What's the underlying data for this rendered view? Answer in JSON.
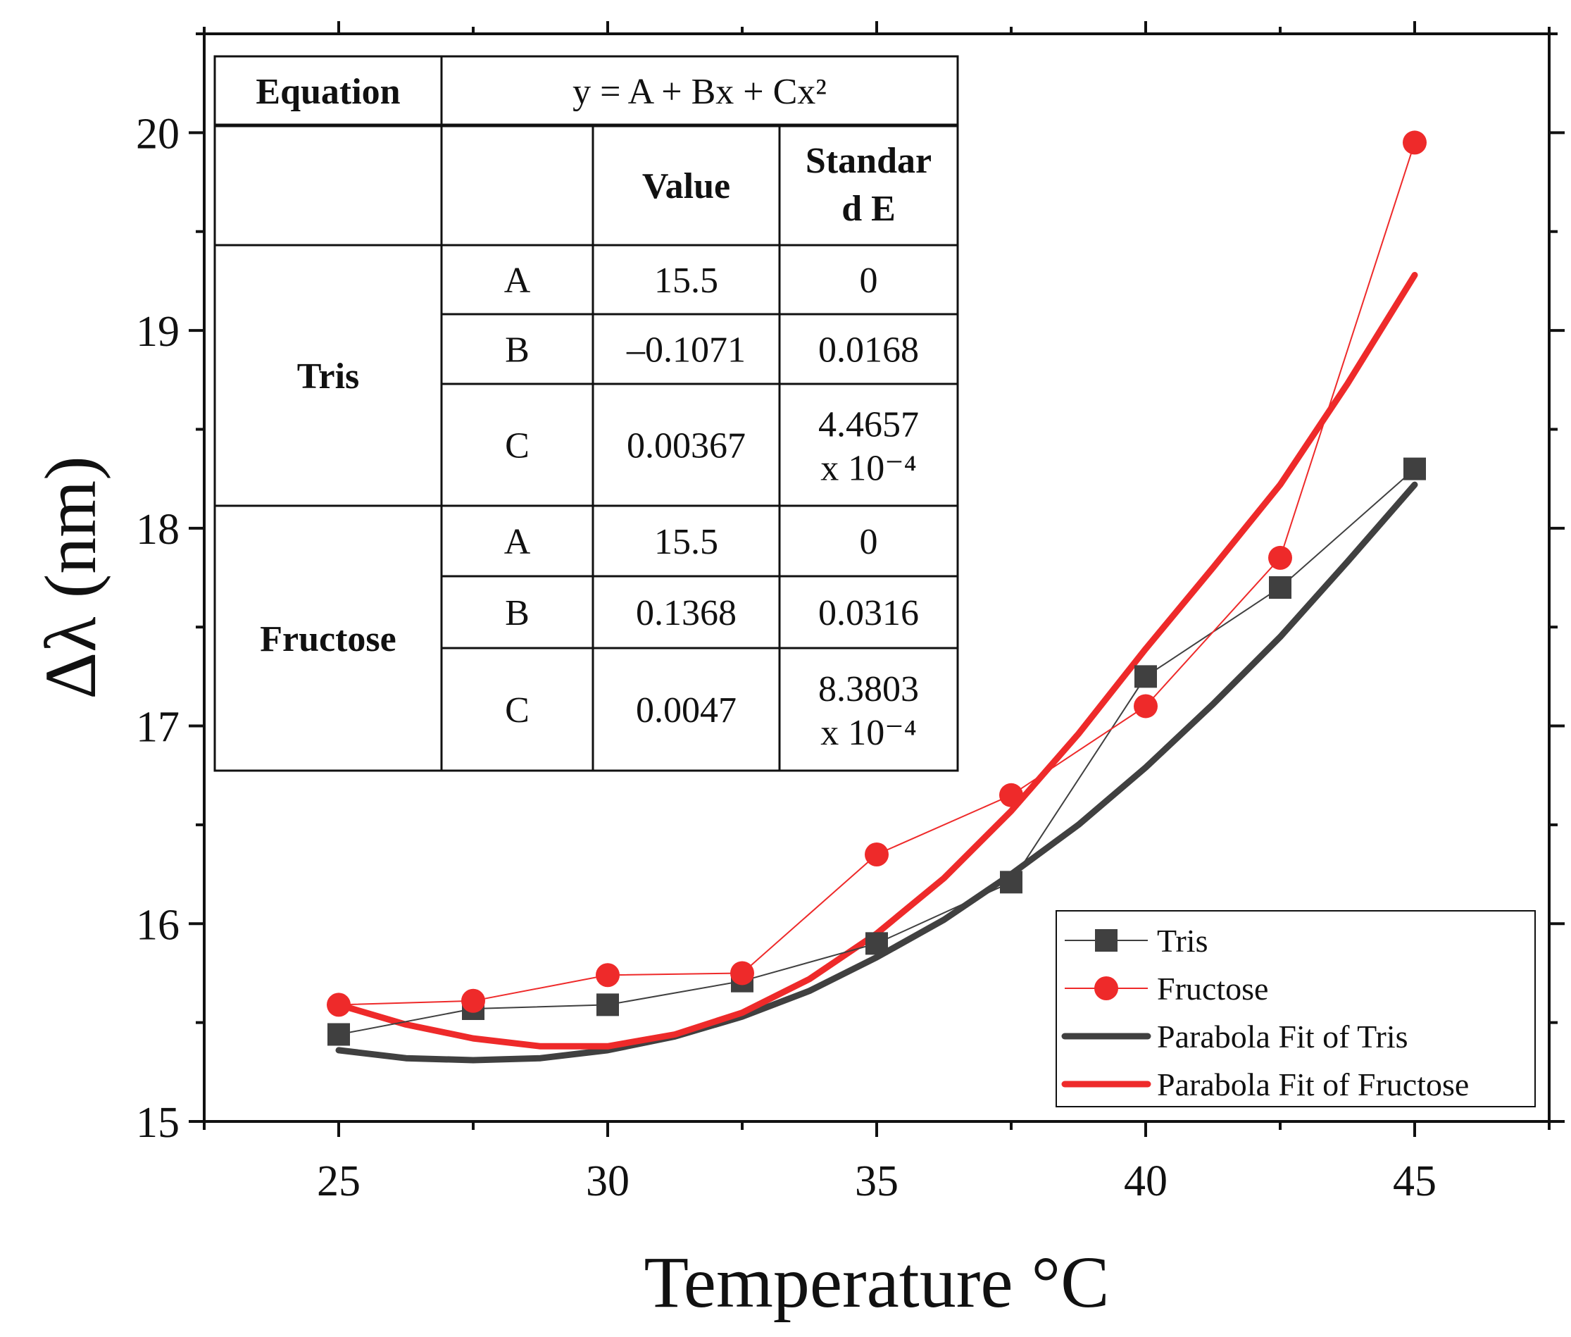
{
  "chart_data": {
    "type": "line",
    "title": "",
    "xlabel": "Temperature °C",
    "ylabel": "Δλ (nm)",
    "xlim": [
      22.5,
      47.5
    ],
    "ylim": [
      15,
      20.5
    ],
    "xticks": [
      25,
      30,
      35,
      40,
      45
    ],
    "xtick_labels": [
      "25",
      "30",
      "35",
      "40",
      "45"
    ],
    "yticks": [
      15,
      16,
      17,
      18,
      19,
      20
    ],
    "ytick_labels": [
      "15",
      "16",
      "17",
      "18",
      "19",
      "20"
    ],
    "x": [
      25,
      27.5,
      30,
      32.5,
      35,
      37.5,
      40,
      42.5,
      45
    ],
    "series": [
      {
        "name": "Tris",
        "color": "#404040",
        "marker": "square",
        "values": [
          15.44,
          15.57,
          15.59,
          15.71,
          15.9,
          16.21,
          17.25,
          17.7,
          18.3
        ]
      },
      {
        "name": "Fructose",
        "color": "#ee2a2a",
        "marker": "circle",
        "values": [
          15.59,
          15.61,
          15.74,
          15.75,
          16.35,
          16.65,
          17.1,
          17.85,
          19.95
        ]
      }
    ],
    "fits": [
      {
        "name": "Parabola Fit of Tris",
        "color": "#404040",
        "x": [
          25,
          26.25,
          27.5,
          28.75,
          30,
          31.25,
          32.5,
          33.75,
          35,
          36.25,
          37.5,
          38.75,
          40,
          41.25,
          42.5,
          43.75,
          45
        ],
        "values": [
          15.36,
          15.32,
          15.31,
          15.32,
          15.36,
          15.43,
          15.53,
          15.66,
          15.83,
          16.02,
          16.25,
          16.5,
          16.79,
          17.11,
          17.45,
          17.83,
          18.22
        ]
      },
      {
        "name": "Parabola Fit of Fructose",
        "color": "#ee2a2a",
        "x": [
          25,
          26.25,
          27.5,
          28.75,
          30,
          31.25,
          32.5,
          33.75,
          35,
          36.25,
          37.5,
          38.75,
          40,
          41.25,
          42.5,
          43.75,
          45
        ],
        "values": [
          15.59,
          15.49,
          15.42,
          15.38,
          15.38,
          15.44,
          15.55,
          15.72,
          15.95,
          16.23,
          16.57,
          16.96,
          17.39,
          17.8,
          18.22,
          18.73,
          19.28
        ]
      }
    ],
    "legend": {
      "position": "bottom-right",
      "entries": [
        "Tris",
        "Fructose",
        "Parabola Fit of Tris",
        "Parabola Fit of Fructose"
      ]
    },
    "inset_table": {
      "position": "top-left",
      "header_label": "Equation",
      "equation": "y = A + Bx + Cx²",
      "col_value": "Value",
      "col_std_l1": "Standar",
      "col_std_l2": "d E",
      "groups": [
        {
          "name": "Tris",
          "rows": [
            {
              "param": "A",
              "value": "15.5",
              "std_l1": "0",
              "std_l2": ""
            },
            {
              "param": "B",
              "value": "–0.1071",
              "std_l1": "0.0168",
              "std_l2": ""
            },
            {
              "param": "C",
              "value": "0.00367",
              "std_l1": "4.4657",
              "std_l2": "x 10⁻⁴"
            }
          ]
        },
        {
          "name": "Fructose",
          "rows": [
            {
              "param": "A",
              "value": "15.5",
              "std_l1": "0",
              "std_l2": ""
            },
            {
              "param": "B",
              "value": "0.1368",
              "std_l1": "0.0316",
              "std_l2": ""
            },
            {
              "param": "C",
              "value": "0.0047",
              "std_l1": "8.3803",
              "std_l2": "x 10⁻⁴"
            }
          ]
        }
      ]
    }
  }
}
